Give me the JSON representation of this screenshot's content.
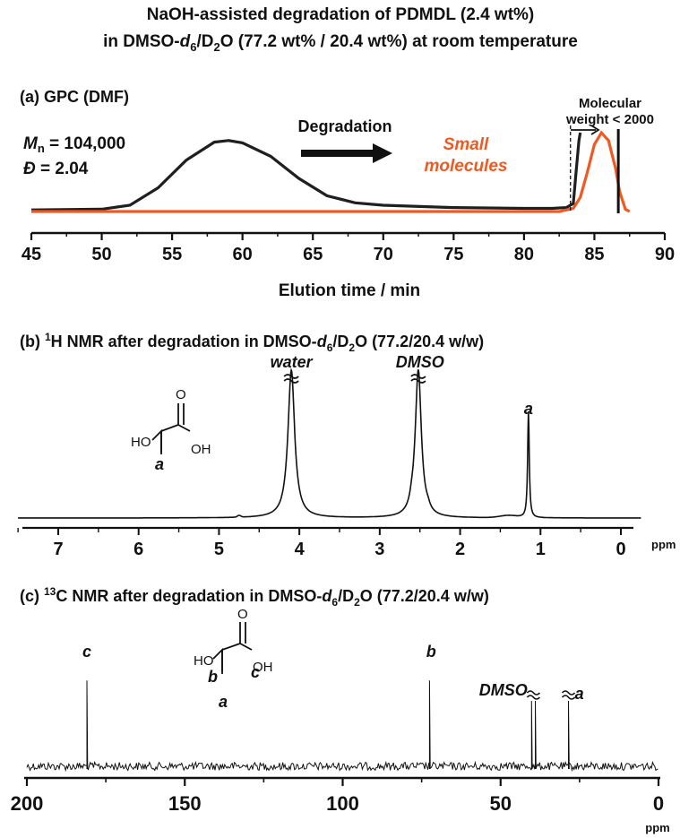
{
  "title": {
    "line1": "NaOH-assisted degradation of PDMDL (2.4 wt%)",
    "line2_pre": "in DMSO-",
    "line2_d": "d",
    "line2_sub6": "6",
    "line2_mid": "/D",
    "line2_sub2": "2",
    "line2_post": "O (77.2 wt% / 20.4 wt%) at room temperature"
  },
  "chart_data": [
    {
      "type": "line",
      "panel": "(a)",
      "title": "(a) GPC (DMF)",
      "xlabel": "Elution time / min",
      "xlim": [
        45,
        90
      ],
      "xticks": [
        45,
        50,
        55,
        60,
        65,
        70,
        75,
        80,
        85,
        90
      ],
      "colors": {
        "before": "#1a1a1a",
        "after": "#f05a22"
      },
      "annotations": {
        "mn_label": "M",
        "mn_sub": "n",
        "mn_value": " = 104,000",
        "d_label": "Đ",
        "d_value": " = 2.04",
        "arrow_text": "Degradation",
        "small_line1": "Small",
        "small_line2": "molecules",
        "mw_line1": "Molecular",
        "mw_line2": "weight < 2000",
        "mw_cutoff_min": 83.3
      },
      "series": [
        {
          "values": [
            [
              45,
              0.02
            ],
            [
              50,
              0.03
            ],
            [
              52,
              0.08
            ],
            [
              54,
              0.3
            ],
            [
              56,
              0.65
            ],
            [
              58,
              0.88
            ],
            [
              59,
              0.9
            ],
            [
              60,
              0.87
            ],
            [
              62,
              0.7
            ],
            [
              64,
              0.42
            ],
            [
              66,
              0.2
            ],
            [
              68,
              0.11
            ],
            [
              70,
              0.08
            ],
            [
              75,
              0.05
            ],
            [
              80,
              0.04
            ],
            [
              82,
              0.04
            ],
            [
              83,
              0.05
            ],
            [
              83.5,
              0.1
            ],
            [
              83.7,
              0.5
            ],
            [
              83.9,
              0.9
            ],
            [
              84.0,
              1.0
            ]
          ]
        },
        {
          "values": [
            [
              45,
              0.0
            ],
            [
              80,
              0.0
            ],
            [
              82.5,
              0.0
            ],
            [
              83.5,
              0.04
            ],
            [
              84,
              0.18
            ],
            [
              84.5,
              0.5
            ],
            [
              85,
              0.85
            ],
            [
              85.5,
              1.0
            ],
            [
              86,
              0.9
            ],
            [
              86.5,
              0.55
            ],
            [
              86.8,
              0.25
            ],
            [
              87.2,
              0.03
            ],
            [
              87.5,
              0.0
            ]
          ]
        }
      ]
    },
    {
      "type": "line",
      "panel": "(b)",
      "title_pre": "(b) ",
      "title_sup": "1",
      "title_post": "H NMR after degradation in DMSO-",
      "title_d": "d",
      "title_sub6": "6",
      "title_mid": "/D",
      "title_sub2": "2",
      "title_end": "O (77.2/20.4 w/w)",
      "xlabel": "ppm",
      "xlim": [
        7.5,
        -0.5
      ],
      "xticks": [
        7,
        6,
        5,
        4,
        3,
        2,
        1,
        0
      ],
      "peak_labels": [
        {
          "text": "water",
          "ppm": 4.1
        },
        {
          "text": "DMSO",
          "ppm": 2.5
        },
        {
          "text": "a",
          "ppm": 1.15
        }
      ],
      "peaks": [
        {
          "ppm": 4.1,
          "height": 1.0,
          "width": 0.05,
          "truncated": true
        },
        {
          "ppm": 2.52,
          "height": 1.0,
          "width": 0.045,
          "truncated": true
        },
        {
          "ppm": 1.15,
          "height": 0.72,
          "width": 0.012,
          "truncated": false
        },
        {
          "ppm": 2.6,
          "height": 0.04,
          "width": 0.03,
          "truncated": false
        },
        {
          "ppm": 2.4,
          "height": 0.025,
          "width": 0.03,
          "truncated": false
        }
      ],
      "structure": {
        "ho": "HO",
        "oh": "OH",
        "o": "O",
        "label": "a"
      }
    },
    {
      "type": "line",
      "panel": "(c)",
      "title_pre": "(c) ",
      "title_sup": "13",
      "title_post": "C NMR after degradation in DMSO-",
      "title_d": "d",
      "title_sub6": "6",
      "title_mid": "/D",
      "title_sub2": "2",
      "title_end": "O (77.2/20.4 w/w)",
      "xlabel": "ppm",
      "xlim": [
        200,
        0
      ],
      "xticks": [
        200,
        150,
        100,
        50,
        0
      ],
      "peak_labels": [
        {
          "text": "c",
          "ppm": 181
        },
        {
          "text": "b",
          "ppm": 72
        },
        {
          "text": "DMSO",
          "ppm": 39.5
        },
        {
          "text": "a",
          "ppm": 28
        }
      ],
      "peaks": [
        {
          "ppm": 181,
          "height": 0.58,
          "truncated": false
        },
        {
          "ppm": 72.5,
          "height": 0.58,
          "truncated": false
        },
        {
          "ppm": 40.2,
          "height": 1.0,
          "truncated": true
        },
        {
          "ppm": 39.0,
          "height": 1.0,
          "truncated": true
        },
        {
          "ppm": 28.5,
          "height": 1.0,
          "truncated": true
        }
      ],
      "structure": {
        "ho": "HO",
        "oh": "OH",
        "o": "O",
        "a": "a",
        "b": "b",
        "c": "c"
      }
    }
  ]
}
